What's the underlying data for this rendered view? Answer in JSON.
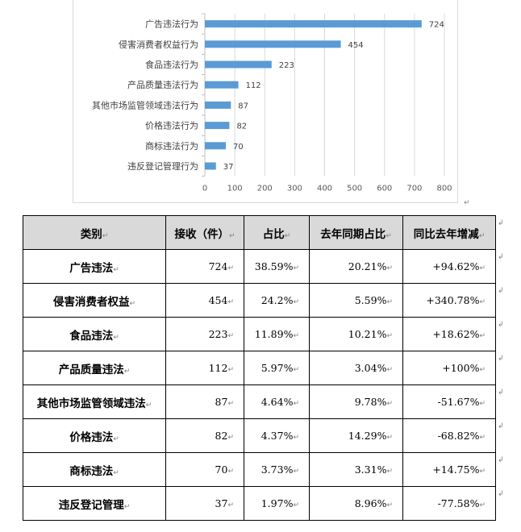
{
  "chart_data": {
    "type": "bar",
    "orientation": "horizontal",
    "categories": [
      "广告违法行为",
      "侵害消费者权益行为",
      "食品违法行为",
      "产品质量违法行为",
      "其他市场监管领域违法行为",
      "价格违法行为",
      "商标违法行为",
      "违反登记管理行为"
    ],
    "values": [
      724,
      454,
      223,
      112,
      87,
      82,
      70,
      37
    ],
    "xlim": [
      0,
      800
    ],
    "x_ticks": [
      0,
      100,
      200,
      300,
      400,
      500,
      600,
      700,
      800
    ],
    "grid": true,
    "bar_color": "#5b9bd5",
    "data_labels": true
  },
  "table": {
    "headers": [
      "类别",
      "接收（件）",
      "占比",
      "去年同期占比",
      "同比去年增减"
    ],
    "rows": [
      {
        "category": "广告违法",
        "received": "724",
        "share": "38.59%",
        "last_year_share": "20.21%",
        "yoy_change": "+94.62%"
      },
      {
        "category": "侵害消费者权益",
        "received": "454",
        "share": "24.2%",
        "last_year_share": "5.59%",
        "yoy_change": "+340.78%"
      },
      {
        "category": "食品违法",
        "received": "223",
        "share": "11.89%",
        "last_year_share": "10.21%",
        "yoy_change": "+18.62%"
      },
      {
        "category": "产品质量违法",
        "received": "112",
        "share": "5.97%",
        "last_year_share": "3.04%",
        "yoy_change": "+100%"
      },
      {
        "category": "其他市场监管领域违法",
        "received": "87",
        "share": "4.64%",
        "last_year_share": "9.78%",
        "yoy_change": "-51.67%"
      },
      {
        "category": "价格违法",
        "received": "82",
        "share": "4.37%",
        "last_year_share": "14.29%",
        "yoy_change": "-68.82%"
      },
      {
        "category": "商标违法",
        "received": "70",
        "share": "3.73%",
        "last_year_share": "3.31%",
        "yoy_change": "+14.75%"
      },
      {
        "category": "违反登记管理",
        "received": "37",
        "share": "1.97%",
        "last_year_share": "8.96%",
        "yoy_change": "-77.58%"
      }
    ]
  },
  "marks": {
    "paragraph": "↵",
    "cell_end": "↲"
  }
}
